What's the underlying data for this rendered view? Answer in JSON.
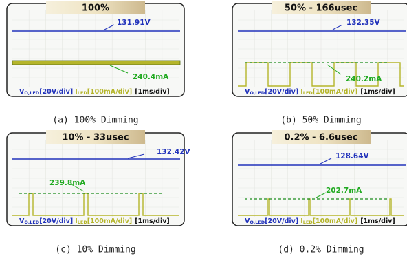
{
  "legend": {
    "v": "V",
    "v_sub": "O,LED",
    "v_scale": "[20V/div]",
    "i": "I",
    "i_sub": "LED",
    "i_scale": "[100mA/div]",
    "t_scale": "[1ms/div]"
  },
  "panels": [
    {
      "title": "100%",
      "voltage": "131.91V",
      "current": "240.4mA",
      "caption": "(a) 100% Dimming"
    },
    {
      "title": "50% - 166usec",
      "voltage": "132.35V",
      "current": "240.2mA",
      "caption": "(b) 50% Dimming"
    },
    {
      "title": "10% - 33usec",
      "voltage": "132.42V",
      "current": "239.8mA",
      "caption": "(c) 10% Dimming"
    },
    {
      "title": "0.2% - 6.6usec",
      "voltage": "128.64V",
      "current": "202.7mA",
      "caption": "(d) 0.2% Dimming"
    }
  ]
}
